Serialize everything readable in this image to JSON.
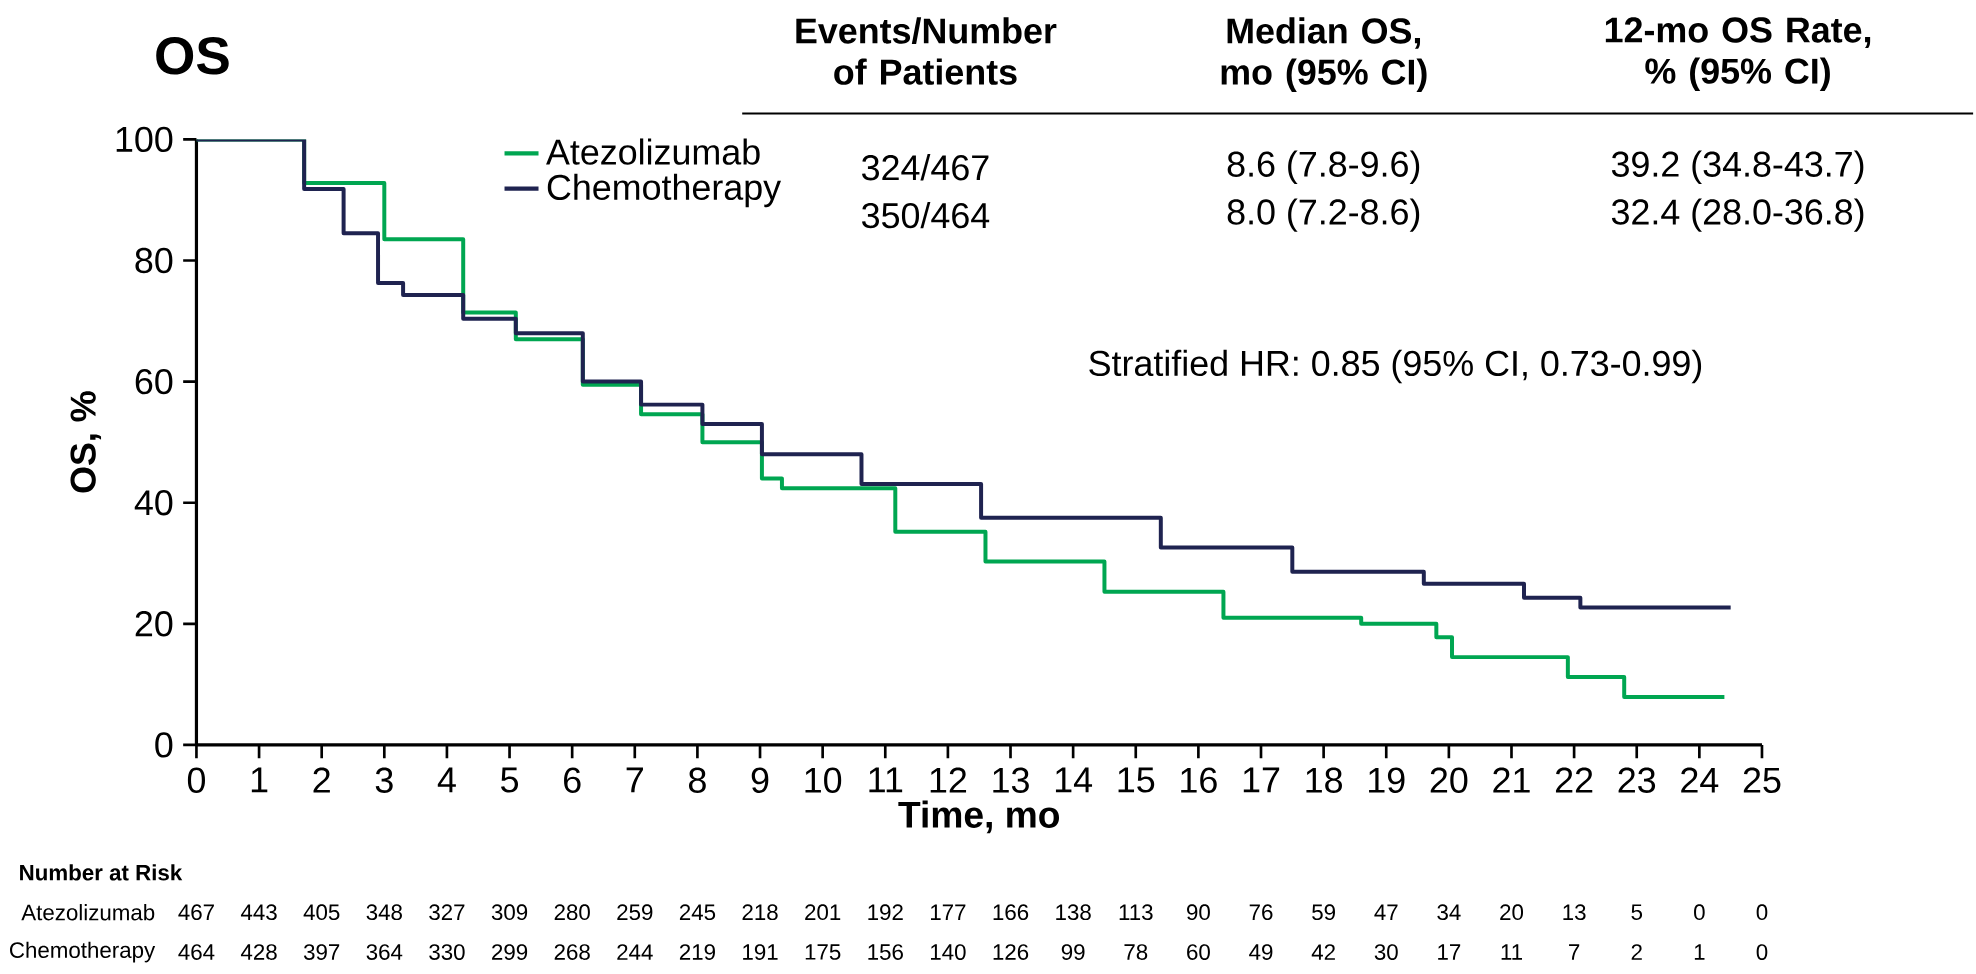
{
  "chart_data": {
    "type": "step",
    "title": "OS",
    "xlabel": "Time, mo",
    "ylabel": "OS, %",
    "xlim": [
      0,
      25
    ],
    "ylim": [
      0,
      100
    ],
    "xticks": [
      0,
      1,
      2,
      3,
      4,
      5,
      6,
      7,
      8,
      9,
      10,
      11,
      12,
      13,
      14,
      15,
      16,
      17,
      18,
      19,
      20,
      21,
      22,
      23,
      24,
      25
    ],
    "yticks": [
      0,
      20,
      40,
      60,
      80,
      100
    ],
    "legend": "top left",
    "series": [
      {
        "name": "Atezolizumab",
        "color": "#00a651",
        "x": [
          0,
          1.72,
          3.0,
          4.26,
          5.1,
          6.17,
          7.1,
          8.08,
          9.03,
          9.35,
          11.16,
          12.6,
          14.5,
          16.4,
          18.6,
          19.8,
          20.05,
          21.9,
          22.8,
          24.4
        ],
        "values": [
          100,
          92.8,
          83.5,
          71.4,
          67,
          59.5,
          54.6,
          50,
          44,
          42.4,
          35.2,
          30.3,
          25.3,
          21,
          20,
          17.8,
          14.5,
          11.2,
          7.9,
          7.9
        ]
      },
      {
        "name": "Chemotherapy",
        "color": "#1f2350",
        "x": [
          0,
          1.72,
          2.35,
          2.9,
          3.3,
          4.26,
          5.1,
          6.17,
          7.1,
          8.08,
          9.03,
          10.62,
          12.53,
          15.4,
          17.5,
          19.6,
          21.2,
          22.1,
          24.5
        ],
        "values": [
          100,
          91.8,
          84.5,
          76.3,
          74.3,
          70.4,
          68,
          60,
          56.2,
          53,
          48,
          43.1,
          37.5,
          32.6,
          28.6,
          26.6,
          24.3,
          22.7,
          22.7
        ]
      }
    ],
    "annotations": [
      "Events/Number of Patients",
      "Median OS, mo (95% CI)",
      "12-mo OS Rate, % (95% CI)",
      "324/467",
      "8.6 (7.8-9.6)",
      "39.2 (34.8-43.7)",
      "350/464",
      "8.0 (7.2-8.6)",
      "32.4 (28.0-36.8)",
      "Stratified HR: 0.85 (95% CI, 0.73-0.99)",
      "Number at Risk",
      "467",
      "443",
      "405",
      "348",
      "327",
      "309",
      "280",
      "259",
      "245",
      "218",
      "201",
      "192",
      "177",
      "166",
      "138",
      "113",
      "90",
      "76",
      "59",
      "47",
      "34",
      "20",
      "13",
      "5",
      "0",
      "0",
      "464",
      "428",
      "397",
      "364",
      "330",
      "299",
      "268",
      "244",
      "219",
      "191",
      "175",
      "156",
      "140",
      "126",
      "99",
      "78",
      "60",
      "49",
      "42",
      "30",
      "17",
      "11",
      "7",
      "2",
      "1",
      "0"
    ]
  }
}
